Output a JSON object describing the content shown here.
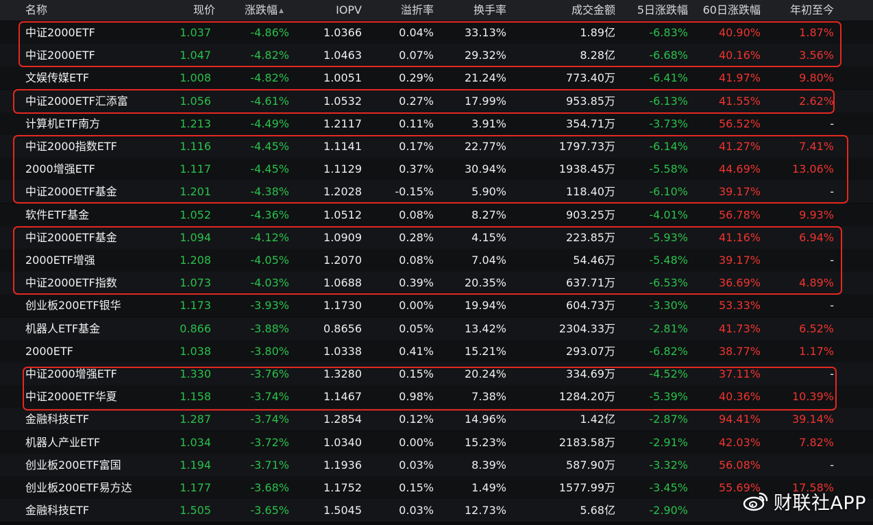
{
  "columns": {
    "name": "名称",
    "price": "现价",
    "change": "涨跌幅",
    "iopv": "IOPV",
    "premium": "溢折率",
    "turnover": "换手率",
    "amount": "成交金额",
    "d5": "5日涨跌幅",
    "d60": "60日涨跌幅",
    "ytd": "年初至今"
  },
  "sort_icon": "sort-up-icon",
  "colors": {
    "up": "#f0342f",
    "down": "#29c14b",
    "highlight_box": "#e5281f"
  },
  "rows": [
    {
      "name": "中证2000ETF",
      "price": "1.037",
      "change": "-4.86%",
      "iopv": "1.0366",
      "premium": "0.04%",
      "turnover": "33.13%",
      "amount": "1.89亿",
      "d5": "-6.83%",
      "d60": "40.90%",
      "ytd": "1.87%"
    },
    {
      "name": "中证2000ETF",
      "price": "1.047",
      "change": "-4.82%",
      "iopv": "1.0463",
      "premium": "0.07%",
      "turnover": "29.32%",
      "amount": "8.28亿",
      "d5": "-6.68%",
      "d60": "40.16%",
      "ytd": "3.56%"
    },
    {
      "name": "文娱传媒ETF",
      "price": "1.008",
      "change": "-4.82%",
      "iopv": "1.0051",
      "premium": "0.29%",
      "turnover": "21.24%",
      "amount": "773.40万",
      "d5": "-6.41%",
      "d60": "41.97%",
      "ytd": "9.80%"
    },
    {
      "name": "中证2000ETF汇添富",
      "price": "1.056",
      "change": "-4.61%",
      "iopv": "1.0532",
      "premium": "0.27%",
      "turnover": "17.99%",
      "amount": "953.85万",
      "d5": "-6.13%",
      "d60": "41.55%",
      "ytd": "2.62%"
    },
    {
      "name": "计算机ETF南方",
      "price": "1.213",
      "change": "-4.49%",
      "iopv": "1.2117",
      "premium": "0.11%",
      "turnover": "3.91%",
      "amount": "354.71万",
      "d5": "-3.73%",
      "d60": "56.52%",
      "ytd": "-"
    },
    {
      "name": "中证2000指数ETF",
      "price": "1.116",
      "change": "-4.45%",
      "iopv": "1.1141",
      "premium": "0.17%",
      "turnover": "22.77%",
      "amount": "1797.73万",
      "d5": "-6.14%",
      "d60": "41.27%",
      "ytd": "7.41%"
    },
    {
      "name": "2000增强ETF",
      "price": "1.117",
      "change": "-4.45%",
      "iopv": "1.1129",
      "premium": "0.37%",
      "turnover": "30.94%",
      "amount": "1938.45万",
      "d5": "-5.58%",
      "d60": "44.69%",
      "ytd": "13.06%"
    },
    {
      "name": "中证2000ETF基金",
      "price": "1.201",
      "change": "-4.38%",
      "iopv": "1.2028",
      "premium": "-0.15%",
      "turnover": "5.90%",
      "amount": "118.40万",
      "d5": "-6.10%",
      "d60": "39.17%",
      "ytd": "-"
    },
    {
      "name": "软件ETF基金",
      "price": "1.052",
      "change": "-4.36%",
      "iopv": "1.0512",
      "premium": "0.08%",
      "turnover": "8.27%",
      "amount": "903.25万",
      "d5": "-4.01%",
      "d60": "56.78%",
      "ytd": "9.93%"
    },
    {
      "name": "中证2000ETF基金",
      "price": "1.094",
      "change": "-4.12%",
      "iopv": "1.0909",
      "premium": "0.28%",
      "turnover": "4.15%",
      "amount": "223.85万",
      "d5": "-5.93%",
      "d60": "41.16%",
      "ytd": "6.94%"
    },
    {
      "name": "2000ETF增强",
      "price": "1.208",
      "change": "-4.05%",
      "iopv": "1.2070",
      "premium": "0.08%",
      "turnover": "7.04%",
      "amount": "54.46万",
      "d5": "-5.48%",
      "d60": "39.17%",
      "ytd": "-"
    },
    {
      "name": "中证2000ETF指数",
      "price": "1.073",
      "change": "-4.03%",
      "iopv": "1.0688",
      "premium": "0.39%",
      "turnover": "20.35%",
      "amount": "637.71万",
      "d5": "-6.53%",
      "d60": "36.69%",
      "ytd": "4.89%"
    },
    {
      "name": "创业板200ETF银华",
      "price": "1.173",
      "change": "-3.93%",
      "iopv": "1.1730",
      "premium": "0.00%",
      "turnover": "19.94%",
      "amount": "604.73万",
      "d5": "-3.30%",
      "d60": "53.33%",
      "ytd": "-"
    },
    {
      "name": "机器人ETF基金",
      "price": "0.866",
      "change": "-3.88%",
      "iopv": "0.8656",
      "premium": "0.05%",
      "turnover": "13.42%",
      "amount": "2304.33万",
      "d5": "-2.81%",
      "d60": "41.73%",
      "ytd": "6.52%"
    },
    {
      "name": "2000ETF",
      "price": "1.038",
      "change": "-3.80%",
      "iopv": "1.0338",
      "premium": "0.41%",
      "turnover": "15.21%",
      "amount": "293.07万",
      "d5": "-6.82%",
      "d60": "38.77%",
      "ytd": "1.17%"
    },
    {
      "name": "中证2000增强ETF",
      "price": "1.330",
      "change": "-3.76%",
      "iopv": "1.3280",
      "premium": "0.15%",
      "turnover": "20.24%",
      "amount": "334.69万",
      "d5": "-4.52%",
      "d60": "37.11%",
      "ytd": "-"
    },
    {
      "name": "中证2000ETF华夏",
      "price": "1.158",
      "change": "-3.74%",
      "iopv": "1.1467",
      "premium": "0.98%",
      "turnover": "7.38%",
      "amount": "1284.20万",
      "d5": "-5.39%",
      "d60": "40.36%",
      "ytd": "10.39%"
    },
    {
      "name": "金融科技ETF",
      "price": "1.287",
      "change": "-3.74%",
      "iopv": "1.2854",
      "premium": "0.12%",
      "turnover": "14.96%",
      "amount": "1.42亿",
      "d5": "-2.87%",
      "d60": "94.41%",
      "ytd": "39.14%"
    },
    {
      "name": "机器人产业ETF",
      "price": "1.034",
      "change": "-3.72%",
      "iopv": "1.0340",
      "premium": "0.00%",
      "turnover": "15.23%",
      "amount": "2183.58万",
      "d5": "-2.91%",
      "d60": "42.03%",
      "ytd": "7.82%"
    },
    {
      "name": "创业板200ETF富国",
      "price": "1.194",
      "change": "-3.71%",
      "iopv": "1.1936",
      "premium": "0.03%",
      "turnover": "8.39%",
      "amount": "587.90万",
      "d5": "-3.32%",
      "d60": "56.08%",
      "ytd": "-"
    },
    {
      "name": "创业板200ETF易方达",
      "price": "1.177",
      "change": "-3.68%",
      "iopv": "1.1752",
      "premium": "0.15%",
      "turnover": "1.49%",
      "amount": "1577.99万",
      "d5": "-3.45%",
      "d60": "55.69%",
      "ytd": "17.58%"
    },
    {
      "name": "金融科技ETF",
      "price": "1.505",
      "change": "-3.65%",
      "iopv": "1.5045",
      "premium": "0.03%",
      "turnover": "12.73%",
      "amount": "5.68亿",
      "d5": "-2.90%",
      "d60": "",
      "ytd": ""
    }
  ],
  "watermark": {
    "text": "财联社APP",
    "logo": "weibo-logo-icon"
  }
}
